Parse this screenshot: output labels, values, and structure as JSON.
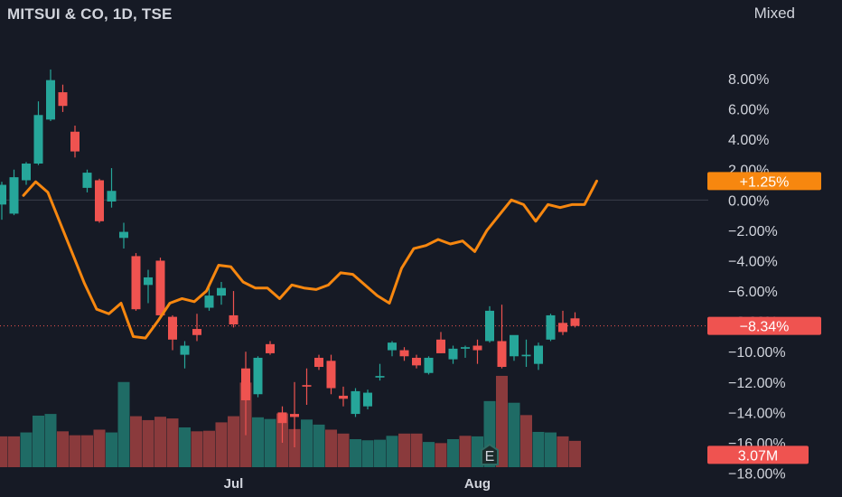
{
  "header": {
    "title": "MITSUI & CO, 1D, TSE",
    "mode": "Mixed"
  },
  "colors": {
    "up": "#26a69a",
    "down": "#ef5350",
    "upVolume": "#1f6b65",
    "downVolume": "#8a3a3c",
    "compare": "#f7870f",
    "background": "#161a25",
    "lastPriceTag": "#ef5350",
    "compareTag": "#f7870f",
    "volumeTag": "#ef5350"
  },
  "chart_data": {
    "type": "candlestick",
    "y_unit": "%",
    "ylim": [
      -18.8,
      10.5
    ],
    "yticks": [
      "8.00%",
      "6.00%",
      "4.00%",
      "2.00%",
      "0.00%",
      "−2.00%",
      "−4.00%",
      "−6.00%",
      "−8.00%",
      "−10.00%",
      "−12.00%",
      "−14.00%",
      "−16.00%",
      "−18.00%"
    ],
    "ytick_values": [
      8,
      6,
      4,
      2,
      0,
      -2,
      -4,
      -6,
      -8,
      -10,
      -12,
      -14,
      -16,
      -18
    ],
    "xticks": [
      {
        "label": "Jul",
        "index": 19
      },
      {
        "label": "Aug",
        "index": 39
      }
    ],
    "tags": {
      "compare": "+1.25%",
      "last": "−8.34%",
      "volume": "3.07M"
    },
    "earnings_marker": {
      "label": "E",
      "index": 40
    },
    "candles": [
      {
        "o": -0.3,
        "h": 1.2,
        "l": -1.3,
        "c": 1.0
      },
      {
        "o": -0.9,
        "h": 2.0,
        "l": -1.0,
        "c": 1.5
      },
      {
        "o": 1.3,
        "h": 2.5,
        "l": 1.0,
        "c": 2.4
      },
      {
        "o": 2.4,
        "h": 6.5,
        "l": 2.3,
        "c": 5.6
      },
      {
        "o": 5.3,
        "h": 8.6,
        "l": 5.2,
        "c": 7.9
      },
      {
        "o": 7.1,
        "h": 7.6,
        "l": 5.8,
        "c": 6.2
      },
      {
        "o": 4.5,
        "h": 4.9,
        "l": 2.8,
        "c": 3.2
      },
      {
        "o": 0.8,
        "h": 2.0,
        "l": 0.5,
        "c": 1.8
      },
      {
        "o": 1.3,
        "h": 1.4,
        "l": -1.5,
        "c": -1.4
      },
      {
        "o": -0.1,
        "h": 2.1,
        "l": -0.5,
        "c": 0.6
      },
      {
        "o": -2.5,
        "h": -1.5,
        "l": -3.2,
        "c": -2.1
      },
      {
        "o": -3.7,
        "h": -3.5,
        "l": -7.3,
        "c": -7.2
      },
      {
        "o": -5.6,
        "h": -4.6,
        "l": -6.8,
        "c": -5.1
      },
      {
        "o": -4.0,
        "h": -3.8,
        "l": -7.8,
        "c": -7.6
      },
      {
        "o": -7.7,
        "h": -7.6,
        "l": -9.9,
        "c": -9.2
      },
      {
        "o": -10.2,
        "h": -9.3,
        "l": -11.1,
        "c": -9.6
      },
      {
        "o": -8.5,
        "h": -7.5,
        "l": -9.3,
        "c": -8.9
      },
      {
        "o": -7.1,
        "h": -5.6,
        "l": -7.3,
        "c": -6.3
      },
      {
        "o": -6.3,
        "h": -5.4,
        "l": -6.9,
        "c": -5.8
      },
      {
        "o": -7.6,
        "h": -6.0,
        "l": -8.4,
        "c": -8.2
      },
      {
        "o": -11.1,
        "h": -10.0,
        "l": -15.5,
        "c": -13.2
      },
      {
        "o": -12.8,
        "h": -10.3,
        "l": -13.0,
        "c": -10.4
      },
      {
        "o": -9.5,
        "h": -9.3,
        "l": -10.2,
        "c": -10.1
      },
      {
        "o": -14.0,
        "h": -13.6,
        "l": -16.0,
        "c": -14.7
      },
      {
        "o": -14.1,
        "h": -12.0,
        "l": -16.3,
        "c": -14.3
      },
      {
        "o": -12.2,
        "h": -11.1,
        "l": -13.5,
        "c": -12.3
      },
      {
        "o": -10.4,
        "h": -10.2,
        "l": -11.2,
        "c": -11.0
      },
      {
        "o": -10.6,
        "h": -10.2,
        "l": -12.8,
        "c": -12.4
      },
      {
        "o": -12.9,
        "h": -12.3,
        "l": -13.6,
        "c": -13.1
      },
      {
        "o": -14.1,
        "h": -12.4,
        "l": -14.3,
        "c": -12.6
      },
      {
        "o": -13.6,
        "h": -12.5,
        "l": -13.8,
        "c": -12.7
      },
      {
        "o": -11.7,
        "h": -10.8,
        "l": -11.9,
        "c": -11.6
      },
      {
        "o": -9.9,
        "h": -9.3,
        "l": -10.3,
        "c": -9.4
      },
      {
        "o": -9.9,
        "h": -9.7,
        "l": -10.6,
        "c": -10.3
      },
      {
        "o": -10.4,
        "h": -10.2,
        "l": -11.1,
        "c": -10.9
      },
      {
        "o": -11.4,
        "h": -10.3,
        "l": -11.5,
        "c": -10.4
      },
      {
        "o": -9.2,
        "h": -8.7,
        "l": -10.1,
        "c": -10.1
      },
      {
        "o": -10.5,
        "h": -9.6,
        "l": -10.8,
        "c": -9.8
      },
      {
        "o": -9.8,
        "h": -9.6,
        "l": -10.4,
        "c": -9.7
      },
      {
        "o": -9.6,
        "h": -9.2,
        "l": -10.8,
        "c": -9.9
      },
      {
        "o": -9.3,
        "h": -7.0,
        "l": -9.4,
        "c": -7.3
      },
      {
        "o": -9.3,
        "h": -6.9,
        "l": -11.1,
        "c": -11.0
      },
      {
        "o": -10.3,
        "h": -9.1,
        "l": -10.6,
        "c": -8.9
      },
      {
        "o": -10.3,
        "h": -9.2,
        "l": -11.0,
        "c": -10.2
      },
      {
        "o": -10.8,
        "h": -9.4,
        "l": -11.2,
        "c": -9.6
      },
      {
        "o": -9.2,
        "h": -7.5,
        "l": -9.3,
        "c": -7.6
      },
      {
        "o": -8.1,
        "h": -7.3,
        "l": -8.9,
        "c": -8.7
      },
      {
        "o": -7.8,
        "h": -7.4,
        "l": -8.4,
        "c": -8.3
      }
    ],
    "volume": {
      "unit": "relative",
      "values": [
        0.55,
        0.55,
        0.62,
        0.92,
        0.95,
        0.64,
        0.57,
        0.57,
        0.67,
        0.62,
        1.52,
        0.91,
        0.84,
        0.9,
        0.87,
        0.71,
        0.64,
        0.65,
        0.8,
        0.91,
        1.51,
        0.89,
        0.86,
        0.96,
        0.68,
        0.85,
        0.76,
        0.67,
        0.6,
        0.5,
        0.48,
        0.49,
        0.56,
        0.6,
        0.6,
        0.45,
        0.43,
        0.5,
        0.56,
        0.55,
        1.18,
        1.63,
        1.15,
        0.93,
        0.63,
        0.62,
        0.55,
        0.47
      ],
      "up": [
        false,
        false,
        true,
        true,
        true,
        false,
        false,
        false,
        false,
        true,
        true,
        false,
        false,
        false,
        false,
        true,
        false,
        false,
        false,
        false,
        false,
        true,
        true,
        false,
        false,
        true,
        true,
        false,
        false,
        true,
        true,
        true,
        true,
        false,
        false,
        true,
        false,
        true,
        false,
        true,
        true,
        false,
        true,
        false,
        true,
        true,
        false,
        false
      ]
    },
    "compare_series": {
      "values": [
        0.3,
        1.2,
        0.5,
        -1.5,
        -3.5,
        -5.5,
        -7.2,
        -7.5,
        -6.8,
        -9.0,
        -9.1,
        -8.0,
        -6.8,
        -6.5,
        -6.7,
        -6.0,
        -4.3,
        -4.4,
        -5.4,
        -5.8,
        -5.8,
        -6.5,
        -5.6,
        -5.8,
        -5.9,
        -5.6,
        -4.8,
        -4.9,
        -5.6,
        -6.3,
        -6.8,
        -4.5,
        -3.2,
        -3.0,
        -2.6,
        -2.9,
        -2.7,
        -3.4,
        -2.0,
        -1.0,
        0.0,
        -0.3,
        -1.4,
        -0.3,
        -0.5,
        -0.3,
        -0.3,
        1.25
      ]
    }
  }
}
